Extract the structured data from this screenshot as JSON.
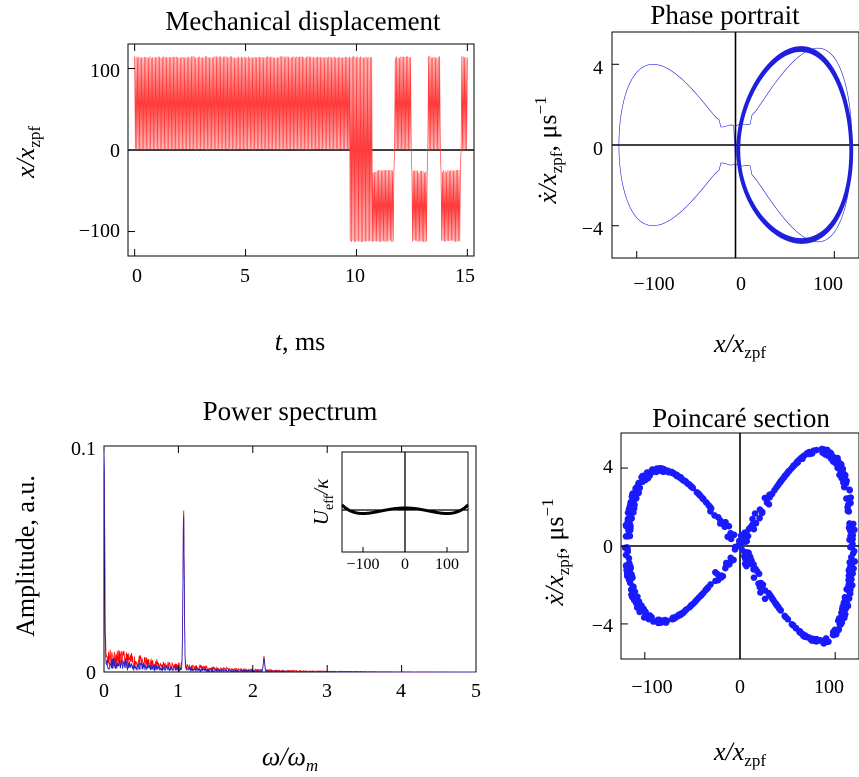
{
  "colors": {
    "displacement": "#ff3b3b",
    "phase": "#1f1fdd",
    "poincare": "#1a1aff",
    "spectrum_red": "#ff0000",
    "spectrum_blue": "#2424cc",
    "axis": "#000000",
    "potential": "#000000"
  },
  "chart_data": [
    {
      "id": "displacement",
      "type": "line",
      "title": "Mechanical displacement",
      "xlabel": {
        "main": "t",
        "unit": ", ms"
      },
      "ylabel": {
        "main": "x/x",
        "sub": "zpf"
      },
      "xlim": [
        -0.3,
        15.3
      ],
      "ylim": [
        -130,
        130
      ],
      "xticks": [
        "0",
        "5",
        "10",
        "15"
      ],
      "yticks": [
        "100",
        "0",
        "−100"
      ],
      "series": [
        {
          "amplitude_max": 115,
          "amplitude_min": -113,
          "segments": [
            {
              "from": 0.0,
              "to": 9.7,
              "well": "positive"
            },
            {
              "from": 9.7,
              "to": 10.7,
              "well": "both"
            },
            {
              "from": 10.7,
              "to": 11.7,
              "well": "negative"
            },
            {
              "from": 11.7,
              "to": 12.5,
              "well": "positive"
            },
            {
              "from": 12.5,
              "to": 13.2,
              "well": "negative"
            },
            {
              "from": 13.2,
              "to": 13.8,
              "well": "positive"
            },
            {
              "from": 13.8,
              "to": 14.7,
              "well": "negative"
            },
            {
              "from": 14.7,
              "to": 15.0,
              "well": "positive"
            }
          ]
        }
      ]
    },
    {
      "id": "phase",
      "type": "line",
      "title": "Phase portrait",
      "xlabel": {
        "main": "x/x",
        "sub": "zpf"
      },
      "ylabel": {
        "main": "ẋ/x",
        "sub": "zpf",
        "unit": ", μs",
        "sup": "−1"
      },
      "xlim": [
        -125,
        125
      ],
      "ylim": [
        -5.6,
        5.6
      ],
      "xticks": [
        "−100",
        "0",
        "100"
      ],
      "yticks": [
        "4",
        "0",
        "−4"
      ],
      "series": [
        {
          "name": "right-well orbit",
          "x_range": [
            2,
            118
          ],
          "v_peak": 4.8,
          "x_at_peak": 62
        },
        {
          "name": "separatrix",
          "x_range": [
            -118,
            118
          ],
          "v_peak_left": 4.0,
          "v_at_origin": 1.0
        }
      ]
    },
    {
      "id": "spectrum",
      "type": "line",
      "title": "Power spectrum",
      "xlabel": {
        "main": "ω/ω",
        "sub": "m"
      },
      "ylabel": {
        "main": "Amplitude, a.u."
      },
      "xlim": [
        0,
        5
      ],
      "ylim": [
        0,
        0.1
      ],
      "xticks": [
        "0",
        "1",
        "2",
        "3",
        "4",
        "5"
      ],
      "yticks": [
        "0.1",
        "0"
      ],
      "peaks": [
        {
          "x": 0.0,
          "y": 0.1
        },
        {
          "x": 1.07,
          "y": 0.07
        },
        {
          "x": 2.15,
          "y": 0.006
        }
      ],
      "series": [
        {
          "color_key": "spectrum_red",
          "noise_level": 0.007
        },
        {
          "color_key": "spectrum_blue",
          "noise_level": 0.004
        }
      ],
      "inset": {
        "ylabel": {
          "main": "U",
          "sub": "eff",
          "tail": "/κ"
        },
        "xlim": [
          -150,
          150
        ],
        "xticks": [
          "−100",
          "0",
          "100"
        ]
      }
    },
    {
      "id": "poincare",
      "type": "scatter",
      "title": "Poincaré section",
      "xlabel": {
        "main": "x/x",
        "sub": "zpf"
      },
      "ylabel": {
        "main": "ẋ/x",
        "sub": "zpf",
        "unit": ", μs",
        "sup": "−1"
      },
      "xlim": [
        -125,
        125
      ],
      "ylim": [
        -5.8,
        5.8
      ],
      "xticks": [
        "−100",
        "0",
        "100"
      ],
      "yticks": [
        "4",
        "0",
        "−4"
      ],
      "series": [
        {
          "shape": "figure-eight",
          "x_range": [
            -118,
            118
          ],
          "v_peak_right": 4.9,
          "v_peak_left": 3.9
        }
      ]
    }
  ]
}
